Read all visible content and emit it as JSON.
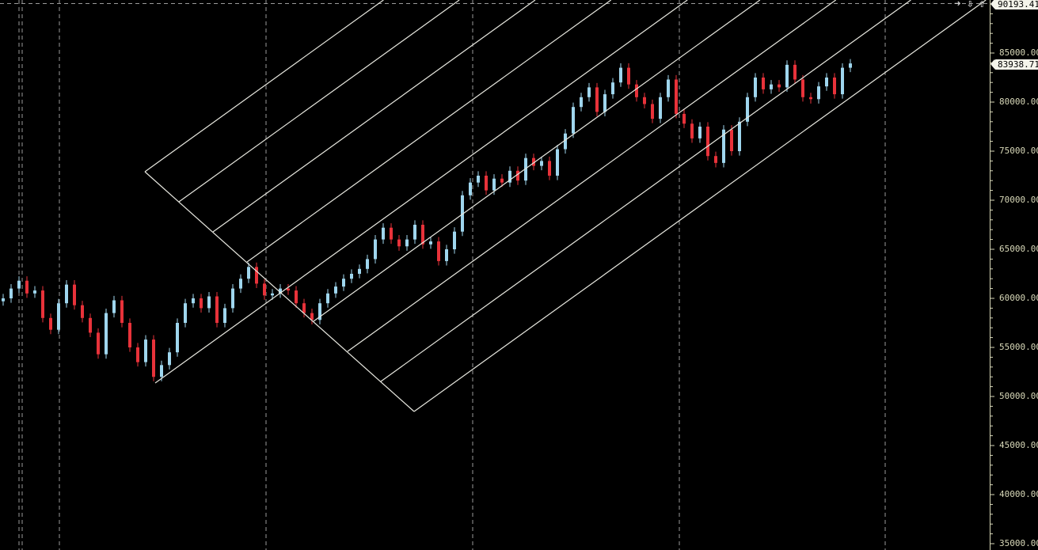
{
  "colors": {
    "background": "#000000",
    "bull": "#9fd6ee",
    "bear": "#e8323a",
    "drawing": "#e8e8e0",
    "grid": "#9a9a9a",
    "axis": "#d8d8b8"
  },
  "toolbar": {
    "icons": [
      "arrow-right-icon",
      "arrow-down-icon",
      "arrow-up-icon"
    ]
  },
  "price_tags": {
    "top": "90193.41",
    "last": "83938.71"
  },
  "chart_data": {
    "type": "candlestick",
    "ylim": [
      34000,
      90200
    ],
    "y_ticks": [
      "85000.00",
      "80000.00",
      "75000.00",
      "70000.00",
      "65000.00",
      "60000.00",
      "55000.00",
      "50000.00",
      "45000.00",
      "40000.00",
      "35000.00"
    ],
    "y_tick_values": [
      85000,
      80000,
      75000,
      70000,
      65000,
      60000,
      55000,
      50000,
      45000,
      40000,
      35000
    ],
    "grid": "vertical dashed",
    "close": [
      60000,
      61000,
      61800,
      60500,
      60800,
      58000,
      56800,
      59500,
      61400,
      59300,
      58000,
      56500,
      54300,
      58500,
      59800,
      57500,
      55000,
      53500,
      55800,
      52000,
      53200,
      54500,
      57500,
      59500,
      60000,
      59000,
      60200,
      57500,
      59000,
      61000,
      62000,
      63200,
      61500,
      60300,
      60500,
      61000,
      60800,
      59500,
      58500,
      57800,
      59500,
      60500,
      61200,
      62000,
      62500,
      63000,
      64000,
      66000,
      67200,
      66000,
      65300,
      66000,
      67500,
      65500,
      65800,
      63800,
      65000,
      66800,
      70500,
      71800,
      72500,
      71000,
      72200,
      71800,
      73000,
      72000,
      74300,
      73500,
      74000,
      72500,
      75200,
      76800,
      79500,
      80500,
      81500,
      79000,
      80800,
      82000,
      83500,
      81800,
      80500,
      79800,
      78300,
      80500,
      82300,
      78800,
      77800,
      76300,
      77500,
      74500,
      73800,
      77200,
      75000,
      78000,
      80500,
      82500,
      81300,
      81800,
      81500,
      83800,
      82300,
      80500,
      80300,
      81600,
      82500,
      80800,
      83500,
      83939
    ],
    "drawing": "fibonacci channel"
  }
}
